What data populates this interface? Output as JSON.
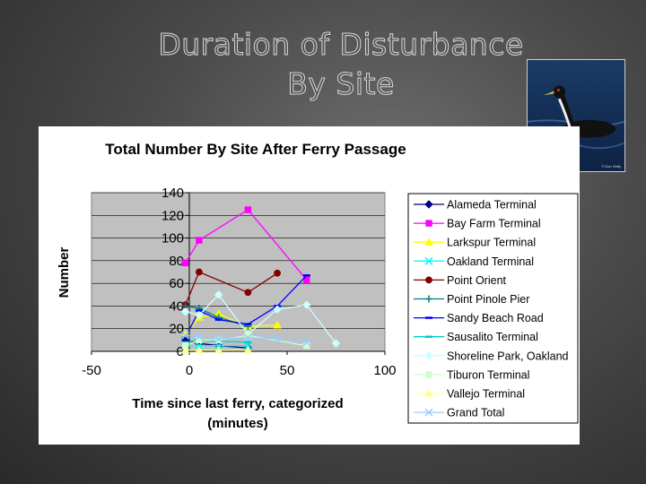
{
  "slide": {
    "title_line1": "Duration of Disturbance",
    "title_line2": "By Site",
    "photo_credit": "© Don Getty"
  },
  "chart_data": {
    "type": "scatter",
    "title": "Total Number By Site After Ferry Passage",
    "xlabel_line1": "Time since last ferry, categorized",
    "xlabel_line2": "(minutes)",
    "ylabel": "Number",
    "xlim": [
      -50,
      100
    ],
    "ylim": [
      0,
      140
    ],
    "xticks": [
      -50,
      0,
      50,
      100
    ],
    "yticks": [
      0,
      20,
      40,
      60,
      80,
      100,
      120,
      140
    ],
    "grid": true,
    "legend_position": "right",
    "series": [
      {
        "name": "Alameda Terminal",
        "color": "#000080",
        "marker": "diamond",
        "points": [
          [
            -2,
            10
          ],
          [
            5,
            7
          ],
          [
            15,
            5
          ],
          [
            30,
            3
          ]
        ]
      },
      {
        "name": "Bay Farm Terminal",
        "color": "#ff00ff",
        "marker": "square",
        "points": [
          [
            -2,
            78
          ],
          [
            5,
            98
          ],
          [
            30,
            125
          ],
          [
            60,
            63
          ]
        ]
      },
      {
        "name": "Larkspur Terminal",
        "color": "#ffff00",
        "marker": "triangle",
        "points": [
          [
            -2,
            15
          ],
          [
            5,
            30
          ],
          [
            15,
            33
          ],
          [
            30,
            22
          ],
          [
            45,
            23
          ]
        ]
      },
      {
        "name": "Oakland Terminal",
        "color": "#00ffff",
        "marker": "x",
        "points": [
          [
            -2,
            5
          ],
          [
            5,
            5
          ],
          [
            15,
            5
          ],
          [
            30,
            5
          ]
        ]
      },
      {
        "name": "Point Orient",
        "color": "#800000",
        "marker": "circle",
        "points": [
          [
            -2,
            41
          ],
          [
            5,
            70
          ],
          [
            30,
            52
          ],
          [
            45,
            69
          ]
        ]
      },
      {
        "name": "Point Pinole Pier",
        "color": "#008080",
        "marker": "plus",
        "points": [
          [
            -2,
            40
          ],
          [
            5,
            38
          ],
          [
            15,
            30
          ],
          [
            30,
            22
          ]
        ]
      },
      {
        "name": "Sandy Beach Road",
        "color": "#0000ff",
        "marker": "dash",
        "points": [
          [
            -2,
            12
          ],
          [
            5,
            36
          ],
          [
            15,
            28
          ],
          [
            30,
            24
          ],
          [
            45,
            40
          ],
          [
            60,
            67
          ]
        ]
      },
      {
        "name": "Sausalito Terminal",
        "color": "#00cccc",
        "marker": "dash",
        "points": [
          [
            -2,
            8
          ],
          [
            5,
            10
          ],
          [
            15,
            9
          ],
          [
            30,
            8
          ]
        ]
      },
      {
        "name": "Shoreline Park, Oakland",
        "color": "#ccffff",
        "marker": "diamond",
        "points": [
          [
            -2,
            35
          ],
          [
            5,
            32
          ],
          [
            15,
            50
          ],
          [
            30,
            15
          ],
          [
            45,
            37
          ],
          [
            60,
            41
          ],
          [
            75,
            7
          ]
        ]
      },
      {
        "name": "Tiburon Terminal",
        "color": "#ccffcc",
        "marker": "square",
        "points": [
          [
            -2,
            5
          ],
          [
            5,
            10
          ],
          [
            15,
            10
          ],
          [
            30,
            14
          ],
          [
            60,
            5
          ]
        ]
      },
      {
        "name": "Vallejo Terminal",
        "color": "#ffff99",
        "marker": "triangle",
        "points": [
          [
            -2,
            1
          ],
          [
            5,
            1
          ],
          [
            15,
            1
          ],
          [
            30,
            1
          ]
        ]
      },
      {
        "name": "Grand Total",
        "color": "#99ccff",
        "marker": "x",
        "points": [
          [
            -2,
            14
          ],
          [
            5,
            13
          ],
          [
            15,
            11
          ],
          [
            30,
            12
          ],
          [
            45,
            11
          ],
          [
            60,
            8
          ]
        ]
      }
    ]
  }
}
